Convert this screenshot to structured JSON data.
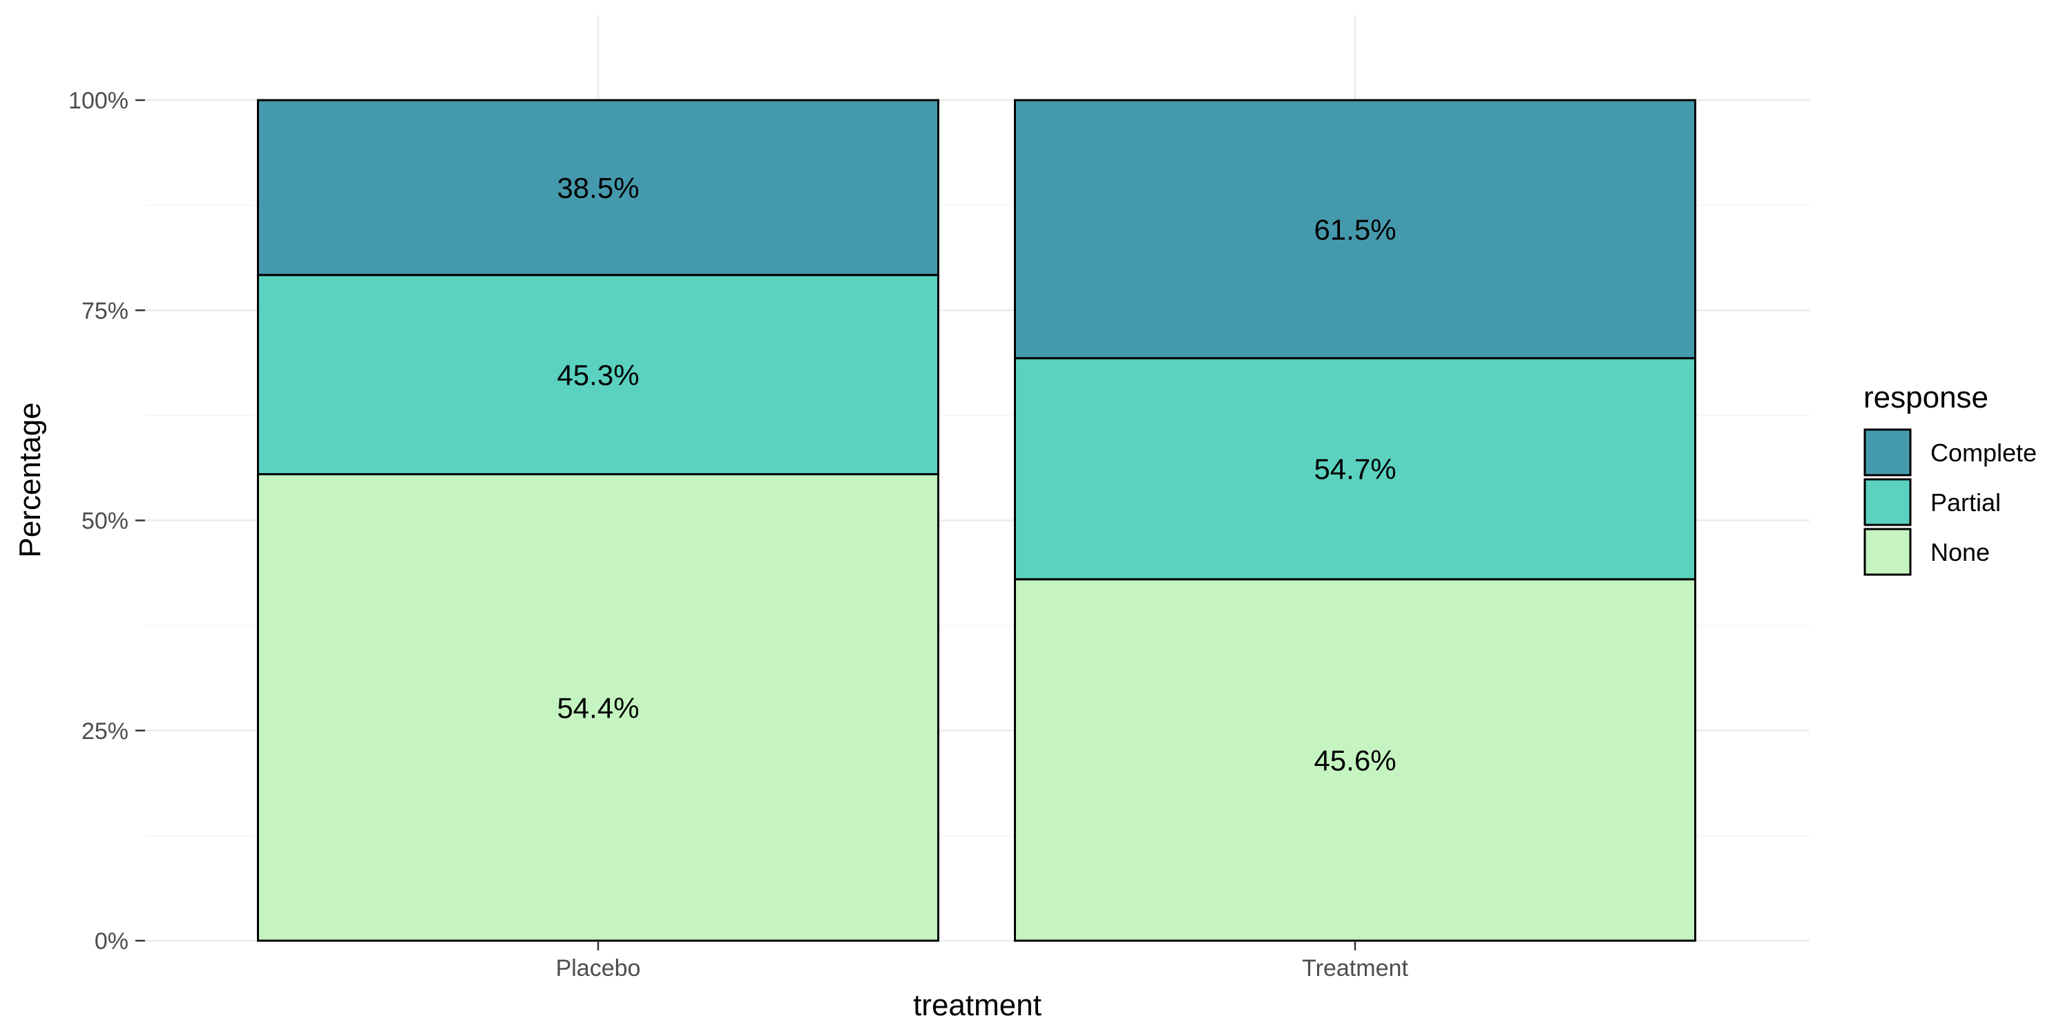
{
  "chart_data": {
    "type": "bar",
    "stacked": true,
    "percent": true,
    "categories": [
      "Placebo",
      "Treatment"
    ],
    "xlabel": "treatment",
    "ylabel": "Percentage",
    "ylim": [
      0,
      1
    ],
    "yticks": [
      0,
      0.25,
      0.5,
      0.75,
      1.0
    ],
    "ytick_labels": [
      "0%",
      "25%",
      "50%",
      "75%",
      "100%"
    ],
    "grid": true,
    "legend": {
      "title": "response",
      "position": "right"
    },
    "series": [
      {
        "name": "None",
        "color": "#c5f4c0",
        "values": [
          0.555,
          0.43
        ],
        "labels": [
          "54.4%",
          "45.6%"
        ]
      },
      {
        "name": "Partial",
        "color": "#5bd1bf",
        "values": [
          0.237,
          0.263
        ],
        "labels": [
          "45.3%",
          "54.7%"
        ]
      },
      {
        "name": "Complete",
        "color": "#4599ac",
        "values": [
          0.208,
          0.307
        ],
        "labels": [
          "38.5%",
          "61.5%"
        ]
      }
    ],
    "legend_order": [
      "Complete",
      "Partial",
      "None"
    ]
  }
}
